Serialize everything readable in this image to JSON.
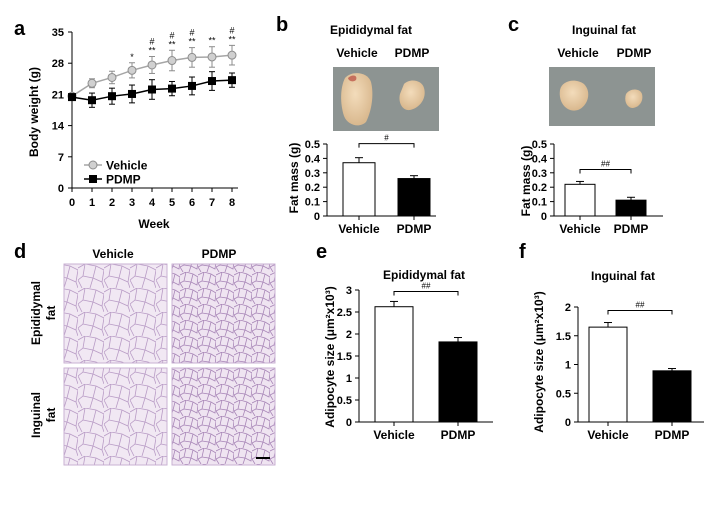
{
  "chart_data": [
    {
      "panel": "a",
      "type": "line",
      "xlabel": "Week",
      "ylabel": "Body weight (g)",
      "x": [
        0,
        1,
        2,
        3,
        4,
        5,
        6,
        7,
        8
      ],
      "xticks": [
        "0",
        "1",
        "2",
        "3",
        "4",
        "5",
        "6",
        "7",
        "8"
      ],
      "yticks": [
        "0",
        "7",
        "14",
        "21",
        "28",
        "35"
      ],
      "ylim": [
        0,
        35
      ],
      "series": [
        {
          "name": "Vehicle",
          "color": "#a6a6a6",
          "marker": "circle",
          "values": [
            20.6,
            23.5,
            24.8,
            26.4,
            27.6,
            28.6,
            29.3,
            29.4,
            29.8
          ],
          "errors": [
            0.6,
            1.0,
            1.4,
            1.7,
            1.9,
            2.3,
            2.2,
            2.3,
            2.2
          ]
        },
        {
          "name": "PDMP",
          "color": "#000000",
          "marker": "square",
          "values": [
            20.4,
            19.7,
            20.6,
            21.1,
            22.1,
            22.3,
            22.9,
            24.0,
            24.2
          ],
          "errors": [
            0.7,
            1.6,
            1.8,
            2.0,
            2.2,
            1.6,
            2.0,
            2.1,
            1.6
          ]
        }
      ],
      "annotations": [
        {
          "x": 3,
          "top": "",
          "bottom": "*"
        },
        {
          "x": 4,
          "top": "#",
          "bottom": "**"
        },
        {
          "x": 5,
          "top": "#",
          "bottom": "**"
        },
        {
          "x": 6,
          "top": "#",
          "bottom": "**"
        },
        {
          "x": 7,
          "top": "",
          "bottom": "**"
        },
        {
          "x": 8,
          "top": "#",
          "bottom": "**"
        }
      ]
    },
    {
      "panel": "b",
      "type": "bar",
      "title": "Epididymal fat",
      "photo_labels": [
        "Vehicle",
        "PDMP"
      ],
      "ylabel": "Fat mass (g)",
      "categories": [
        "Vehicle",
        "PDMP"
      ],
      "values": [
        0.37,
        0.26
      ],
      "errors": [
        0.035,
        0.02
      ],
      "colors": [
        "#ffffff",
        "#000000"
      ],
      "yticks": [
        "0",
        "0.1",
        "0.2",
        "0.3",
        "0.4",
        "0.5"
      ],
      "ylim": [
        0,
        0.5
      ],
      "significance": "#"
    },
    {
      "panel": "c",
      "type": "bar",
      "title": "Inguinal fat",
      "photo_labels": [
        "Vehicle",
        "PDMP"
      ],
      "ylabel": "Fat mass (g)",
      "categories": [
        "Vehicle",
        "PDMP"
      ],
      "values": [
        0.22,
        0.11
      ],
      "errors": [
        0.02,
        0.02
      ],
      "colors": [
        "#ffffff",
        "#000000"
      ],
      "yticks": [
        "0",
        "0.1",
        "0.2",
        "0.3",
        "0.4",
        "0.5"
      ],
      "ylim": [
        0,
        0.5
      ],
      "significance": "##"
    },
    {
      "panel": "e",
      "type": "bar",
      "title": "Epididymal fat",
      "ylabel": "Adipocyte size (μm²x10³)",
      "categories": [
        "Vehicle",
        "PDMP"
      ],
      "values": [
        2.62,
        1.82
      ],
      "errors": [
        0.12,
        0.1
      ],
      "colors": [
        "#ffffff",
        "#000000"
      ],
      "yticks": [
        "0",
        "0.5",
        "1",
        "1.5",
        "2",
        "2.5",
        "3"
      ],
      "ylim": [
        0,
        3
      ],
      "significance": "##"
    },
    {
      "panel": "f",
      "type": "bar",
      "title": "Inguinal fat",
      "ylabel": "Adipocyte size (μm²x10³)",
      "categories": [
        "Vehicle",
        "PDMP"
      ],
      "values": [
        1.65,
        0.89
      ],
      "errors": [
        0.08,
        0.04
      ],
      "colors": [
        "#ffffff",
        "#000000"
      ],
      "yticks": [
        "0",
        "0.5",
        "1",
        "1.5",
        "2"
      ],
      "ylim": [
        0,
        2
      ],
      "significance": "##"
    }
  ],
  "panel_d": {
    "columns": [
      "Vehicle",
      "PDMP"
    ],
    "rows": [
      "Epididymal fat",
      "Inguinal fat"
    ],
    "row_label_lines": [
      [
        "Epididymal",
        "fat"
      ],
      [
        "Inguinal",
        "fat"
      ]
    ]
  },
  "panel_letters": [
    "a",
    "b",
    "c",
    "d",
    "e",
    "f"
  ]
}
